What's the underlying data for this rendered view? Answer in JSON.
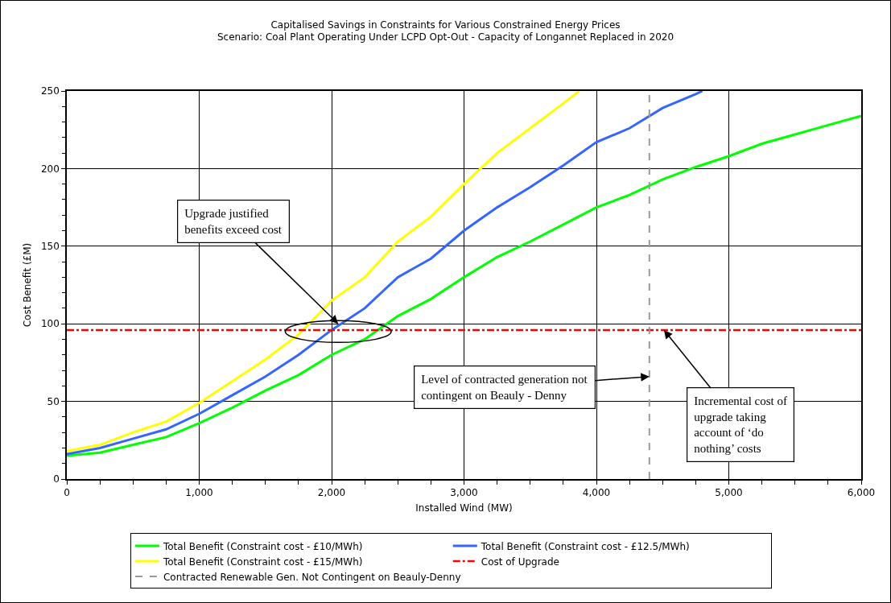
{
  "chart_data": {
    "type": "line",
    "title": "Capitalised Savings in Constraints for Various Constrained Energy Prices",
    "subtitle": "Scenario: Coal Plant Operating Under LCPD Opt-Out - Capacity of Longannet Replaced in 2020",
    "xlabel": "Installed Wind (MW)",
    "ylabel": "Cost Benefit (£M)",
    "series": [
      {
        "name": "Total Benefit (Constraint cost - £10/MWh)",
        "color": "#00ff00",
        "x": [
          0,
          250,
          500,
          750,
          1000,
          1250,
          1500,
          1750,
          2000,
          2250,
          2500,
          2750,
          3000,
          3250,
          3500,
          3750,
          4000,
          4250,
          4500,
          4750,
          5000,
          5250,
          5500,
          5750,
          6000
        ],
        "values": [
          15,
          17,
          22,
          27,
          36,
          46,
          57,
          67,
          80,
          90,
          105,
          116,
          130,
          143,
          153,
          164,
          175,
          183,
          193,
          201,
          208,
          216,
          222,
          228,
          234
        ]
      },
      {
        "name": "Total Benefit (Constraint cost - £12.5/MWh)",
        "color": "#3366ff",
        "x": [
          0,
          250,
          500,
          750,
          1000,
          1250,
          1500,
          1750,
          2000,
          2250,
          2500,
          2750,
          3000,
          3250,
          3500,
          3750,
          4000,
          4250,
          4500,
          4750,
          4800
        ],
        "values": [
          16,
          20,
          26,
          32,
          42,
          54,
          66,
          80,
          96,
          110,
          130,
          142,
          160,
          175,
          188,
          202,
          217,
          226,
          239,
          248,
          250
        ]
      },
      {
        "name": "Total Benefit (Constraint cost - £15/MWh)",
        "color": "#ffff00",
        "x": [
          0,
          250,
          500,
          750,
          1000,
          1250,
          1500,
          1750,
          2000,
          2250,
          2500,
          2750,
          3000,
          3250,
          3500,
          3750,
          3870
        ],
        "values": [
          18,
          22,
          30,
          37,
          49,
          63,
          77,
          93,
          115,
          130,
          153,
          169,
          190,
          210,
          226,
          242,
          250
        ]
      }
    ],
    "ref_lines": [
      {
        "axis": "y",
        "value": 96,
        "label": "Cost of Upgrade",
        "color": "#ff0000",
        "line_style": "dashdot"
      },
      {
        "axis": "x",
        "value": 4400,
        "label": "Contracted Renewable Gen. Not Contingent on Beauly-Denny",
        "color": "#999999",
        "line_style": "dashed"
      }
    ],
    "annotations": [
      {
        "text": "Upgrade justified\nbenefits exceed cost",
        "x": 2050,
        "y": 100
      },
      {
        "text": "Level of contracted generation not\ncontingent on Beauly - Denny",
        "x": 4400,
        "y": 66
      },
      {
        "text": "Incremental cost of\nupgrade taking\naccount of ‘do\nnothing’ costs",
        "x": 4510,
        "y": 96
      }
    ],
    "xlim": [
      0,
      6000
    ],
    "ylim": [
      0,
      250
    ],
    "xticks": [
      {
        "value": 0,
        "label": "0"
      },
      {
        "value": 250,
        "label": null
      },
      {
        "value": 500,
        "label": null
      },
      {
        "value": 750,
        "label": null
      },
      {
        "value": 1000,
        "label": "1,000"
      },
      {
        "value": 1250,
        "label": null
      },
      {
        "value": 1500,
        "label": null
      },
      {
        "value": 1750,
        "label": null
      },
      {
        "value": 2000,
        "label": "2,000"
      },
      {
        "value": 2250,
        "label": null
      },
      {
        "value": 2500,
        "label": null
      },
      {
        "value": 2750,
        "label": null
      },
      {
        "value": 3000,
        "label": "3,000"
      },
      {
        "value": 3250,
        "label": null
      },
      {
        "value": 3500,
        "label": null
      },
      {
        "value": 3750,
        "label": null
      },
      {
        "value": 4000,
        "label": "4,000"
      },
      {
        "value": 4250,
        "label": null
      },
      {
        "value": 4500,
        "label": null
      },
      {
        "value": 4750,
        "label": null
      },
      {
        "value": 5000,
        "label": "5,000"
      },
      {
        "value": 5250,
        "label": null
      },
      {
        "value": 5500,
        "label": null
      },
      {
        "value": 5750,
        "label": null
      },
      {
        "value": 6000,
        "label": "6,000"
      }
    ],
    "yticks": [
      0,
      {
        "value": 10,
        "label": null
      },
      {
        "value": 20,
        "label": null
      },
      {
        "value": 30,
        "label": null
      },
      {
        "value": 40,
        "label": null
      },
      50,
      {
        "value": 60,
        "label": null
      },
      {
        "value": 70,
        "label": null
      },
      {
        "value": 80,
        "label": null
      },
      {
        "value": 90,
        "label": null
      },
      100,
      {
        "value": 110,
        "label": null
      },
      {
        "value": 120,
        "label": null
      },
      {
        "value": 130,
        "label": null
      },
      {
        "value": 140,
        "label": null
      },
      150,
      {
        "value": 160,
        "label": null
      },
      {
        "value": 170,
        "label": null
      },
      {
        "value": 180,
        "label": null
      },
      {
        "value": 190,
        "label": null
      },
      200,
      {
        "value": 210,
        "label": null
      },
      {
        "value": 220,
        "label": null
      },
      {
        "value": 230,
        "label": null
      },
      {
        "value": 240,
        "label": null
      },
      250
    ],
    "grid": true,
    "legend": "bottom",
    "marker": "none",
    "line_style": "solid"
  }
}
